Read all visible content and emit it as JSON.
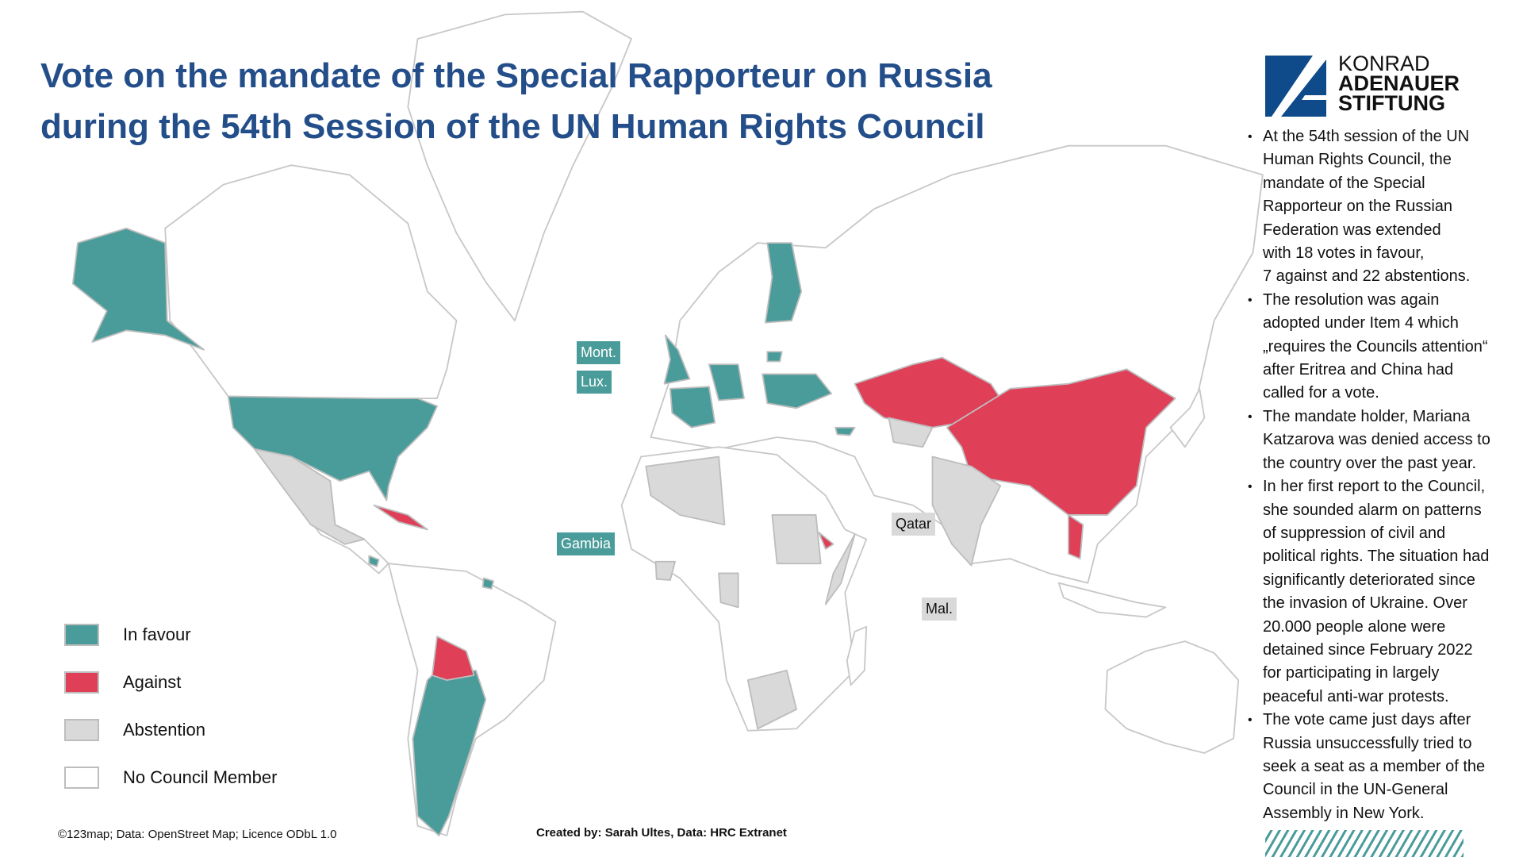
{
  "title": {
    "line1": "Vote on the mandate of the Special Rapporteur on Russia",
    "line2": "during the 54th Session of the UN Human Rights Council"
  },
  "logo": {
    "line1": "KONRAD",
    "line2": "ADENAUER",
    "line3": "STIFTUNG"
  },
  "colors": {
    "in_favour": "#4a9c9a",
    "against": "#e03f58",
    "abstention": "#d9d9d9",
    "no_member": "#ffffff",
    "title": "#234e8a",
    "border": "#bdbdbd"
  },
  "bullets": [
    {
      "lines": [
        "At the 54th session of the UN",
        "Human Rights Council, the",
        "mandate of the Special",
        "Rapporteur on the Russian",
        "Federation was extended",
        "with 18 votes in favour,",
        "7 against and 22 abstentions."
      ]
    },
    {
      "lines": [
        "The resolution was again",
        "adopted under Item 4 which",
        "„requires the Councils attention“",
        "after Eritrea and China had",
        "called for a vote."
      ]
    },
    {
      "lines": [
        "The mandate holder, Mariana",
        "Katzarova was denied access to",
        "the country over the past year."
      ]
    },
    {
      "lines": [
        "In her first report to the Council,",
        "she sounded alarm on patterns",
        "of suppression of civil and",
        "political rights. The situation had",
        "significantly deteriorated since",
        "the invasion of Ukraine. Over",
        "20.000 people alone were",
        "detained since February 2022",
        "for participating in largely",
        "peaceful anti-war protests."
      ]
    },
    {
      "lines": [
        "The vote came just days after",
        "Russia unsuccessfully tried to",
        "seek a seat as a member of the",
        "Council in the UN-General",
        "Assembly in New York."
      ]
    }
  ],
  "legend": [
    {
      "label": "In favour",
      "color": "#4a9c9a"
    },
    {
      "label": "Against",
      "color": "#e03f58"
    },
    {
      "label": "Abstention",
      "color": "#d9d9d9"
    },
    {
      "label": "No Council Member",
      "color": "#ffffff"
    }
  ],
  "map_labels": {
    "montenegro": "Mont.",
    "luxembourg": "Lux.",
    "gambia": "Gambia",
    "qatar": "Qatar",
    "maldives": "Mal."
  },
  "footer": {
    "map_credit": "©123map; Data: OpenStreet Map; Licence ODbL 1.0",
    "created_by": "Created by: Sarah Ultes, Data: HRC Extranet"
  }
}
